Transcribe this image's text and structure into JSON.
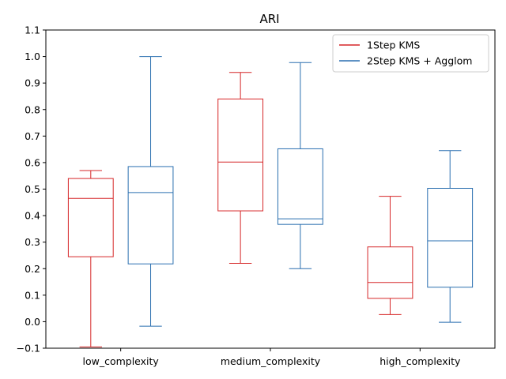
{
  "chart_data": {
    "type": "boxplot",
    "title": "ARI",
    "xlabel": "",
    "ylabel": "",
    "ylim": [
      -0.1,
      1.1
    ],
    "yticks": [
      -0.1,
      0.0,
      0.1,
      0.2,
      0.3,
      0.4,
      0.5,
      0.6,
      0.7,
      0.8,
      0.9,
      1.0,
      1.1
    ],
    "ytick_labels": [
      "−0.1",
      "0.0",
      "0.1",
      "0.2",
      "0.3",
      "0.4",
      "0.5",
      "0.6",
      "0.7",
      "0.8",
      "0.9",
      "1.0",
      "1.1"
    ],
    "categories": [
      "low_complexity",
      "medium_complexity",
      "high_complexity"
    ],
    "grid": false,
    "legend_position": "top-right",
    "series": [
      {
        "name": "1Step KMS",
        "color": "#d62728",
        "boxes": [
          {
            "whislo": -0.095,
            "q1": 0.245,
            "med": 0.465,
            "q3": 0.54,
            "whishi": 0.57
          },
          {
            "whislo": 0.22,
            "q1": 0.418,
            "med": 0.602,
            "q3": 0.84,
            "whishi": 0.94
          },
          {
            "whislo": 0.027,
            "q1": 0.088,
            "med": 0.148,
            "q3": 0.282,
            "whishi": 0.473
          }
        ]
      },
      {
        "name": "2Step KMS + Agglom",
        "color": "#2a6fb0",
        "boxes": [
          {
            "whislo": -0.017,
            "q1": 0.218,
            "med": 0.487,
            "q3": 0.585,
            "whishi": 1.0
          },
          {
            "whislo": 0.2,
            "q1": 0.367,
            "med": 0.388,
            "q3": 0.652,
            "whishi": 0.977
          },
          {
            "whislo": -0.002,
            "q1": 0.13,
            "med": 0.305,
            "q3": 0.503,
            "whishi": 0.645
          }
        ]
      }
    ]
  }
}
